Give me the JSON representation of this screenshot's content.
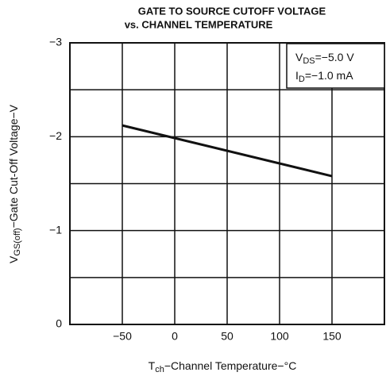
{
  "chart_data": {
    "type": "line",
    "title": [
      "GATE TO SOURCE CUTOFF VOLTAGE",
      "vs. CHANNEL TEMPERATURE"
    ],
    "xlabel": {
      "symbol": "T",
      "sub": "ch",
      "text": "−Channel Temperature−°C"
    },
    "ylabel": {
      "symbol": "V",
      "sub": "GS(off)",
      "text": "−Gate Cut-Off Voltage−V"
    },
    "annotations": [
      {
        "symbol": "V",
        "sub": "DS",
        "text": "=−5.0 V"
      },
      {
        "symbol": "I",
        "sub": "D",
        "text": "=−1.0 mA"
      }
    ],
    "xlim": [
      -100,
      200
    ],
    "ylim": [
      0,
      -3
    ],
    "xticks": [
      {
        "value": -50,
        "label": "−50"
      },
      0,
      50,
      100,
      150
    ],
    "yticks": [
      0,
      {
        "value": -1,
        "label": "−1"
      },
      {
        "value": -2,
        "label": "−2"
      },
      {
        "value": -3,
        "label": "−3"
      }
    ],
    "yminor": [
      -0.5,
      -1.5,
      -2.5
    ],
    "grid": true,
    "series": [
      {
        "color": "#111111",
        "x": [
          -50,
          150
        ],
        "values": [
          -2.12,
          -1.58
        ]
      }
    ]
  }
}
